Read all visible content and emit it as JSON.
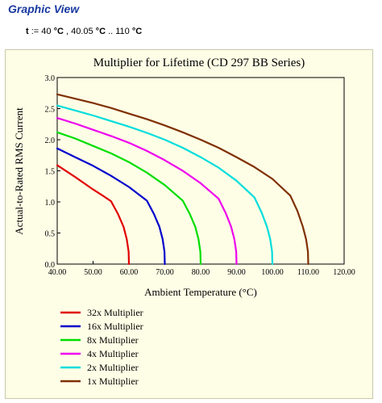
{
  "page": {
    "heading": "Graphic View",
    "formula": {
      "var": "t",
      "assign": " := 40 ",
      "u1": "°C",
      "mid": " , 40.05 ",
      "u2": "°C",
      "range": " .. 110 ",
      "u3": "°C"
    }
  },
  "chart_data": {
    "type": "line",
    "title": "Multiplier for Lifetime (CD 297 BB Series)",
    "xlabel": "Ambient Temperature (°C)",
    "ylabel": "Actual-to-Rated RMS Current",
    "xlim": [
      40,
      120
    ],
    "ylim": [
      0,
      3
    ],
    "xticks": [
      "40.00",
      "50.00",
      "60.00",
      "70.00",
      "80.00",
      "90.00",
      "100.00",
      "110.00",
      "120.00"
    ],
    "yticks": [
      "0.0",
      "0.5",
      "1.0",
      "1.5",
      "2.0",
      "2.5",
      "3.0"
    ],
    "grid": false,
    "legend_position": "bottom-left",
    "series": [
      {
        "name": "32x Multiplier",
        "color": "#e00000",
        "points": [
          [
            40,
            1.59
          ],
          [
            45,
            1.4
          ],
          [
            50,
            1.2
          ],
          [
            53,
            1.09
          ],
          [
            55,
            1.01
          ],
          [
            57,
            0.8
          ],
          [
            58.5,
            0.6
          ],
          [
            59.4,
            0.4
          ],
          [
            59.9,
            0.2
          ],
          [
            60,
            0
          ]
        ]
      },
      {
        "name": "16x Multiplier",
        "color": "#0000cc",
        "points": [
          [
            40,
            1.86
          ],
          [
            45,
            1.72
          ],
          [
            50,
            1.58
          ],
          [
            55,
            1.42
          ],
          [
            60,
            1.24
          ],
          [
            65,
            1.02
          ],
          [
            67,
            0.8
          ],
          [
            68.5,
            0.6
          ],
          [
            69.4,
            0.4
          ],
          [
            69.9,
            0.2
          ],
          [
            70,
            0
          ]
        ]
      },
      {
        "name": "8x Multiplier",
        "color": "#00dd00",
        "points": [
          [
            40,
            2.12
          ],
          [
            45,
            2.02
          ],
          [
            50,
            1.9
          ],
          [
            55,
            1.78
          ],
          [
            60,
            1.64
          ],
          [
            65,
            1.47
          ],
          [
            70,
            1.27
          ],
          [
            75,
            1.02
          ],
          [
            77,
            0.8
          ],
          [
            78.5,
            0.6
          ],
          [
            79.4,
            0.4
          ],
          [
            79.9,
            0.2
          ],
          [
            80,
            0
          ]
        ]
      },
      {
        "name": "4x Multiplier",
        "color": "#ee00ee",
        "points": [
          [
            40,
            2.35
          ],
          [
            45,
            2.26
          ],
          [
            50,
            2.16
          ],
          [
            55,
            2.06
          ],
          [
            60,
            1.95
          ],
          [
            65,
            1.82
          ],
          [
            70,
            1.67
          ],
          [
            75,
            1.5
          ],
          [
            80,
            1.3
          ],
          [
            85,
            1.05
          ],
          [
            87,
            0.82
          ],
          [
            88.5,
            0.6
          ],
          [
            89.4,
            0.4
          ],
          [
            89.9,
            0.2
          ],
          [
            90,
            0
          ]
        ]
      },
      {
        "name": "2x Multiplier",
        "color": "#00dddd",
        "points": [
          [
            40,
            2.55
          ],
          [
            45,
            2.47
          ],
          [
            50,
            2.39
          ],
          [
            55,
            2.3
          ],
          [
            60,
            2.21
          ],
          [
            65,
            2.11
          ],
          [
            70,
            2.0
          ],
          [
            75,
            1.87
          ],
          [
            80,
            1.72
          ],
          [
            85,
            1.55
          ],
          [
            90,
            1.34
          ],
          [
            95,
            1.07
          ],
          [
            97,
            0.83
          ],
          [
            98.5,
            0.6
          ],
          [
            99.4,
            0.4
          ],
          [
            99.9,
            0.2
          ],
          [
            100,
            0
          ]
        ]
      },
      {
        "name": "1x Multiplier",
        "color": "#803000",
        "points": [
          [
            40,
            2.73
          ],
          [
            45,
            2.66
          ],
          [
            50,
            2.59
          ],
          [
            55,
            2.51
          ],
          [
            60,
            2.42
          ],
          [
            65,
            2.33
          ],
          [
            70,
            2.23
          ],
          [
            75,
            2.12
          ],
          [
            80,
            2.0
          ],
          [
            85,
            1.87
          ],
          [
            90,
            1.72
          ],
          [
            95,
            1.56
          ],
          [
            100,
            1.37
          ],
          [
            105,
            1.1
          ],
          [
            107,
            0.85
          ],
          [
            108.5,
            0.6
          ],
          [
            109.4,
            0.4
          ],
          [
            109.9,
            0.2
          ],
          [
            110,
            0
          ]
        ]
      }
    ]
  }
}
